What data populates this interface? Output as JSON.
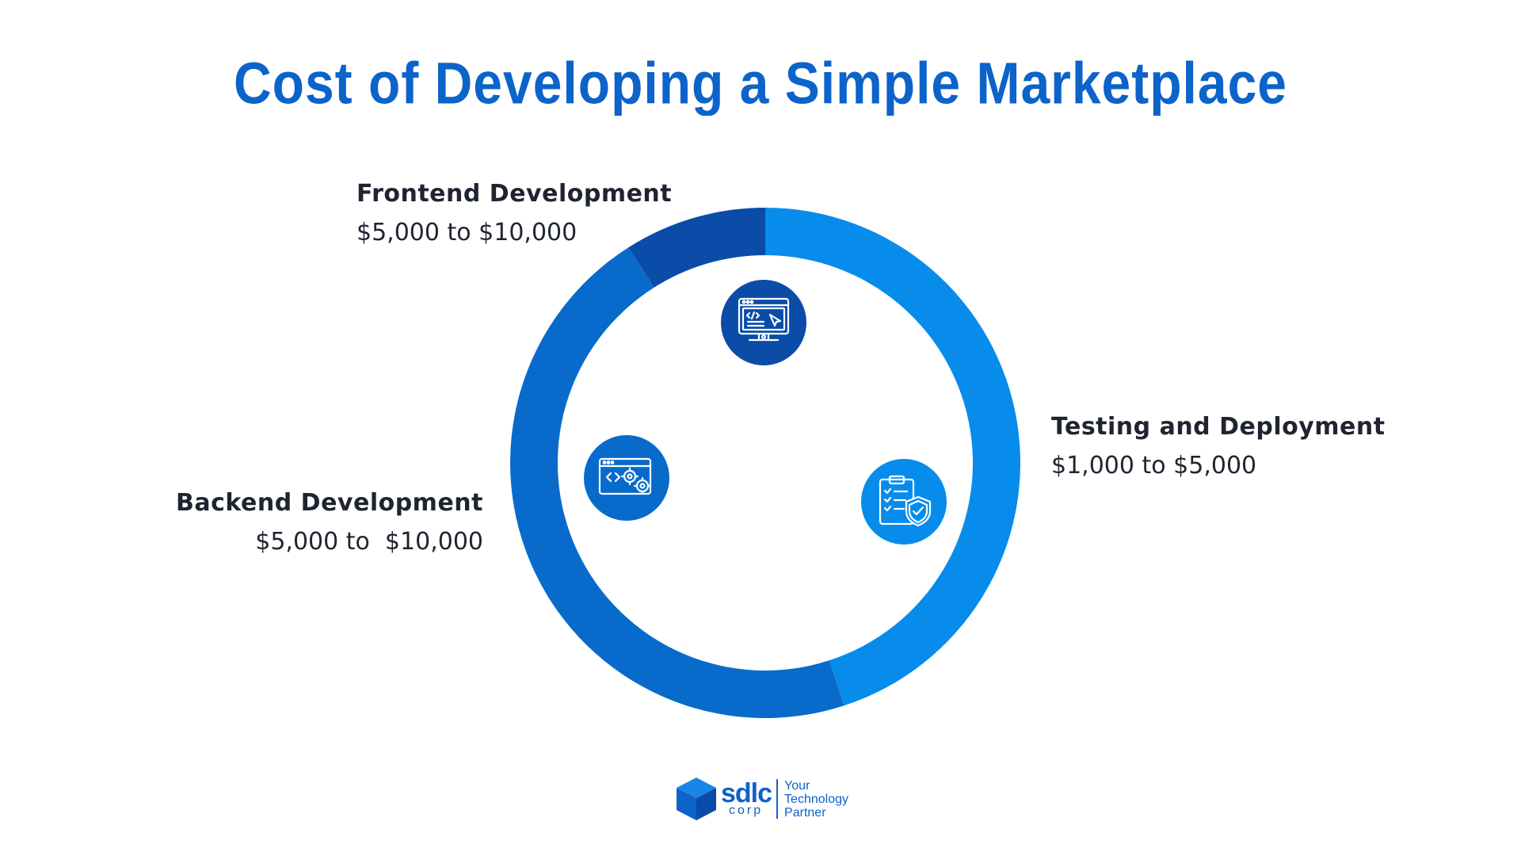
{
  "title": "Cost of Developing a Simple Marketplace",
  "chart_data": {
    "type": "pie",
    "title": "Cost of Developing a Simple Marketplace",
    "series": [
      {
        "name": "Testing and Deployment",
        "range_text": "$1,000 to $5,000",
        "min": 1000,
        "max": 5000,
        "share_percent": 45,
        "color": "#078cec",
        "icon": "testing-clipboard-shield-icon"
      },
      {
        "name": "Backend Development",
        "range_text": "$5,000 to  $10,000",
        "min": 5000,
        "max": 10000,
        "share_percent": 46,
        "color": "#086bcc",
        "icon": "backend-code-gears-icon"
      },
      {
        "name": "Frontend Development",
        "range_text": "$5,000 to $10,000",
        "min": 5000,
        "max": 10000,
        "share_percent": 9,
        "color": "#0a4ca8",
        "icon": "frontend-monitor-code-icon"
      }
    ],
    "legend": "labels around chart"
  },
  "labels": {
    "frontend": {
      "name": "Frontend Development",
      "range": "$5,000 to $10,000"
    },
    "backend": {
      "name": "Backend Development",
      "range": "$5,000 to  $10,000"
    },
    "testing": {
      "name": "Testing and Deployment",
      "range": "$1,000 to $5,000"
    }
  },
  "brand": {
    "name": "sdlc",
    "sub": "corp",
    "tagline": [
      "Your",
      "Technology",
      "Partner"
    ]
  },
  "colors": {
    "title": "#0c63c9",
    "text": "#1f2430",
    "brand": "#0c63c9"
  }
}
